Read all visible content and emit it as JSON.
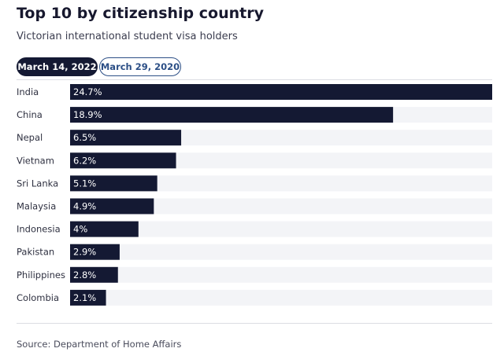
{
  "title": "Top 10 by citizenship country",
  "subtitle": "Victorian international student visa holders",
  "toggles": {
    "active": "March 14, 2022",
    "inactive": "March 29, 2020"
  },
  "source": "Source: Department of Home Affairs",
  "colors": {
    "bar": "#141933",
    "track": "#f3f4f7",
    "bar_label": "#ffffff",
    "category_label": "#2e3040"
  },
  "chart_data": {
    "type": "bar",
    "orientation": "horizontal",
    "categories": [
      "India",
      "China",
      "Nepal",
      "Vietnam",
      "Sri Lanka",
      "Malaysia",
      "Indonesia",
      "Pakistan",
      "Philippines",
      "Colombia"
    ],
    "values": [
      24.7,
      18.9,
      6.5,
      6.2,
      5.1,
      4.9,
      4,
      2.9,
      2.8,
      2.1
    ],
    "value_labels": [
      "24.7%",
      "18.9%",
      "6.5%",
      "6.2%",
      "5.1%",
      "4.9%",
      "4%",
      "2.9%",
      "2.8%",
      "2.1%"
    ],
    "xlim": [
      0,
      24.7
    ],
    "grid": false,
    "legend": "none"
  }
}
